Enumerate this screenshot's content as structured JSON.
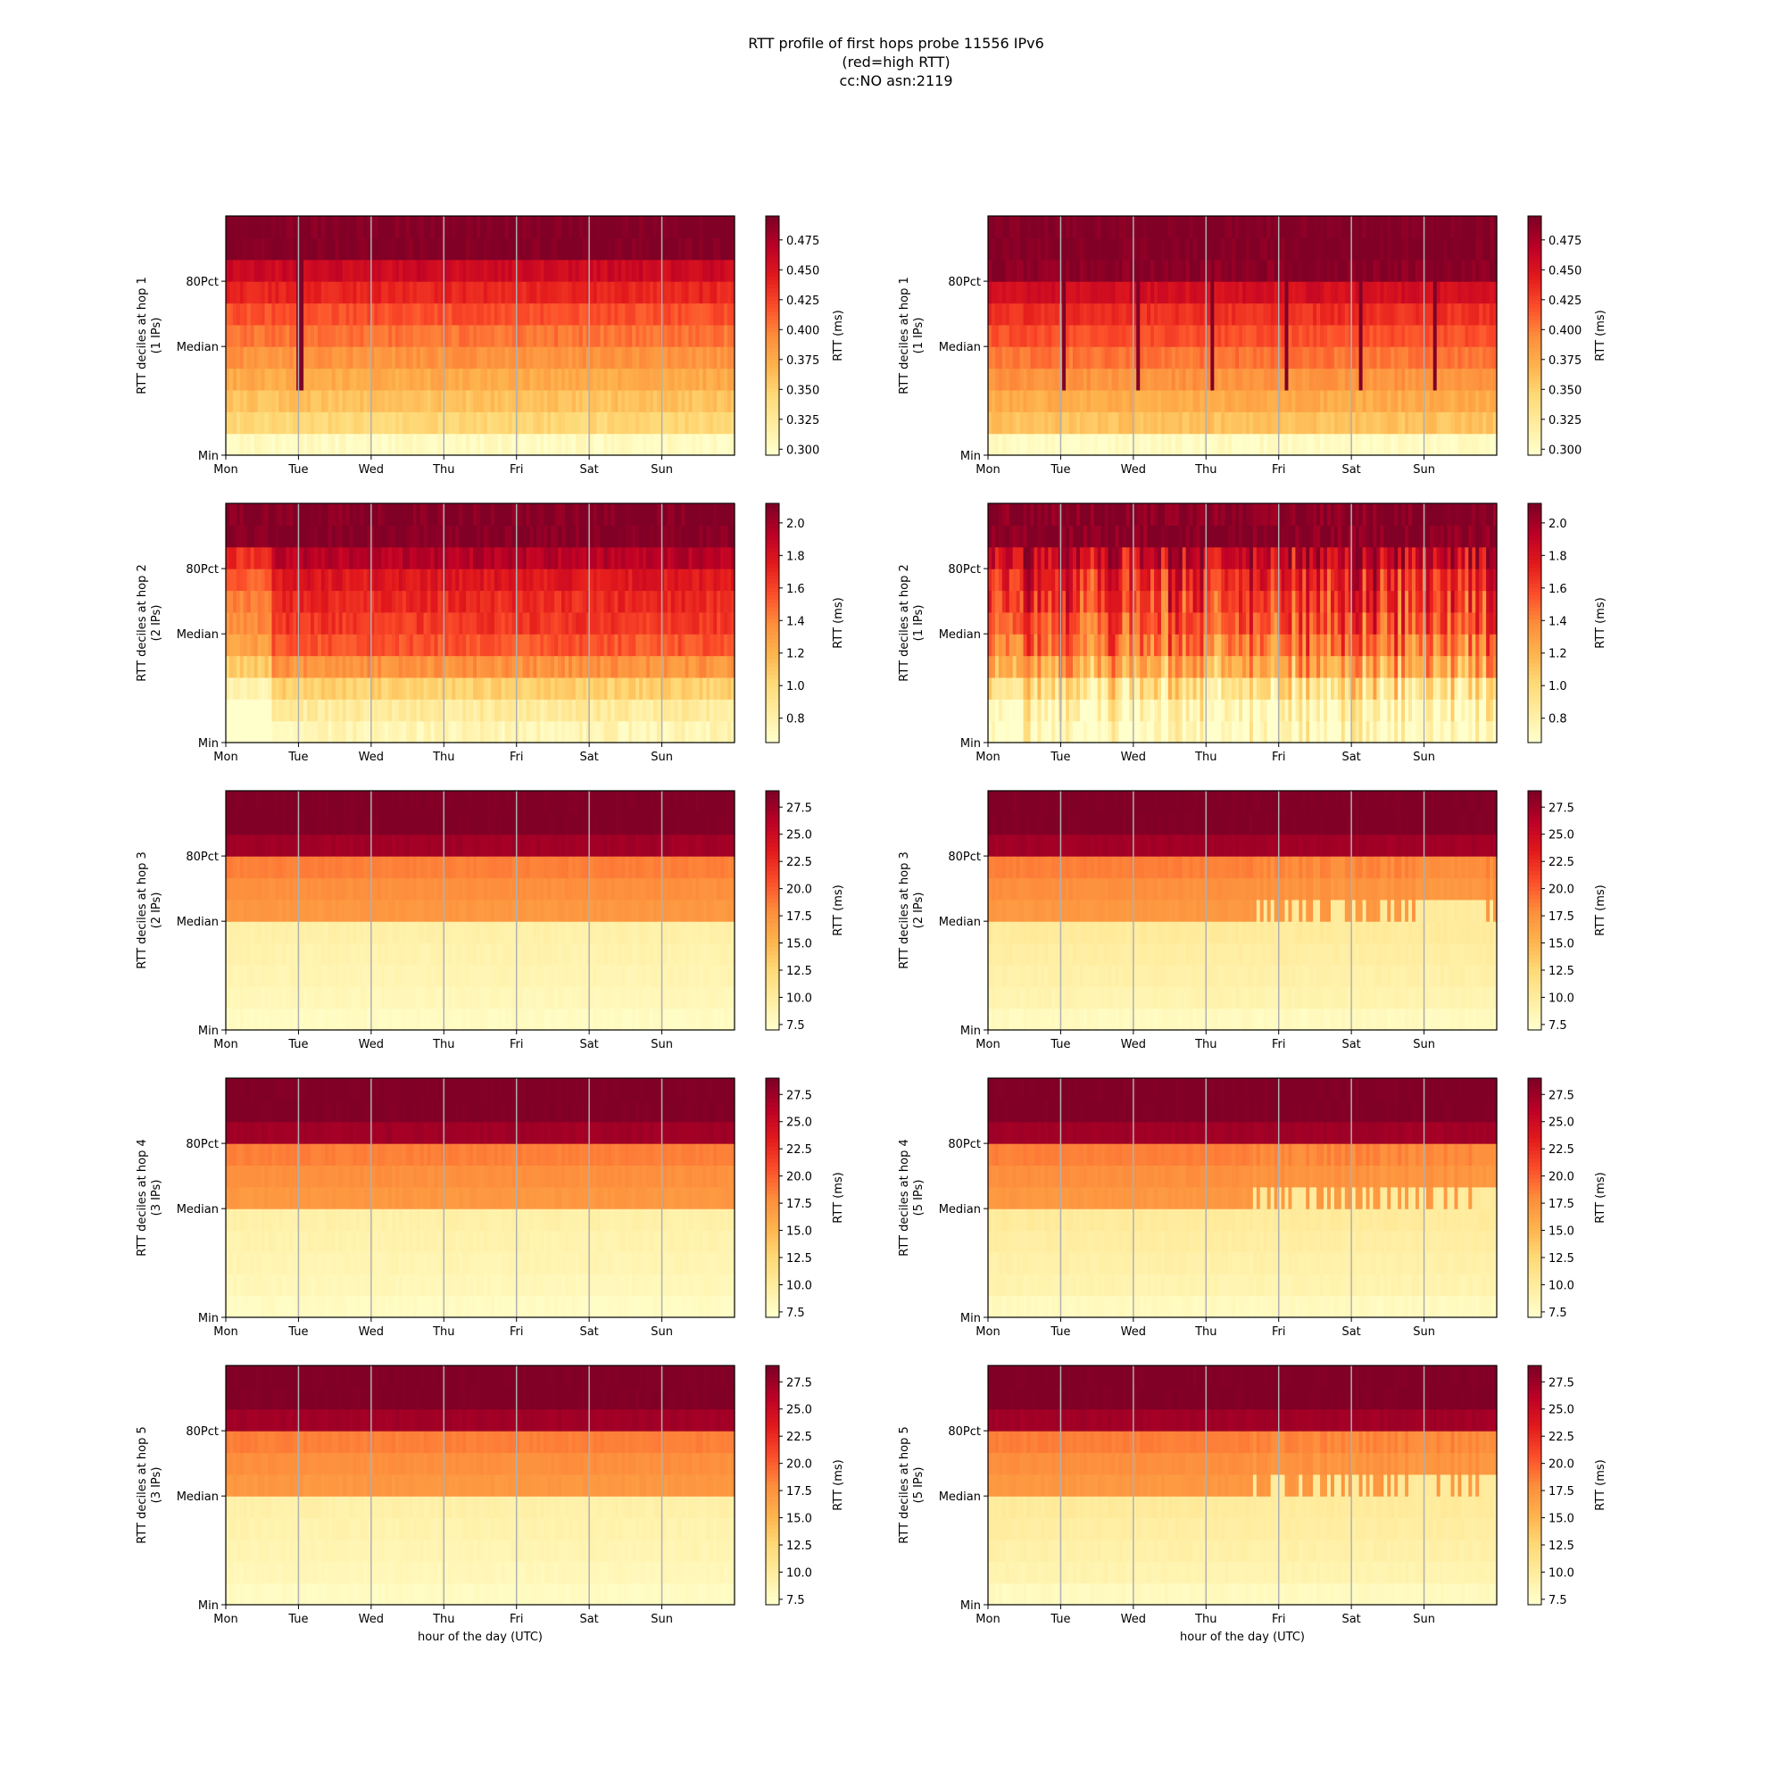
{
  "title_lines": [
    "RTT profile of first hops probe 11556 IPv6",
    "(red=high RTT)",
    "cc:NO asn:2119"
  ],
  "xlabel": "hour of the day (UTC)",
  "colorbar_label": "RTT (ms)",
  "colormap": [
    "#ffffcc",
    "#ffeda0",
    "#fed976",
    "#feb24c",
    "#fd8d3c",
    "#fc4e2a",
    "#e31a1c",
    "#bd0026",
    "#800026"
  ],
  "grid_color": "#b0b0b0",
  "chart_data": [
    {
      "type": "heatmap",
      "col": 0,
      "row": 0,
      "ylabel": "RTT deciles at hop 1",
      "ylabel2": "(1 IPs)",
      "x_ticks": [
        "Mon",
        "Tue",
        "Wed",
        "Thu",
        "Fri",
        "Sat",
        "Sun"
      ],
      "y_ticks": [
        "Min",
        "Median",
        "80Pct"
      ],
      "colorbar_range": [
        0.295,
        0.495
      ],
      "colorbar_ticks": [
        "0.300",
        "0.325",
        "0.350",
        "0.375",
        "0.400",
        "0.425",
        "0.450",
        "0.475"
      ],
      "decile_levels": [
        0.3,
        0.345,
        0.36,
        0.375,
        0.39,
        0.405,
        0.42,
        0.44,
        0.46,
        0.495
      ],
      "noise": 0.008,
      "profile": "flat",
      "spikes": "mon"
    },
    {
      "type": "heatmap",
      "col": 1,
      "row": 0,
      "ylabel": "RTT deciles at hop 1",
      "ylabel2": "(1 IPs)",
      "x_ticks": [
        "Mon",
        "Tue",
        "Wed",
        "Thu",
        "Fri",
        "Sat",
        "Sun"
      ],
      "y_ticks": [
        "Min",
        "Median",
        "80Pct"
      ],
      "colorbar_range": [
        0.295,
        0.495
      ],
      "colorbar_ticks": [
        "0.300",
        "0.325",
        "0.350",
        "0.375",
        "0.400",
        "0.425",
        "0.450",
        "0.475"
      ],
      "decile_levels": [
        0.3,
        0.36,
        0.375,
        0.39,
        0.405,
        0.42,
        0.435,
        0.455,
        0.49,
        0.495
      ],
      "noise": 0.008,
      "profile": "flat",
      "spikes": "days"
    },
    {
      "type": "heatmap",
      "col": 0,
      "row": 1,
      "ylabel": "RTT deciles at hop 2",
      "ylabel2": "(2 IPs)",
      "x_ticks": [
        "Mon",
        "Tue",
        "Wed",
        "Thu",
        "Fri",
        "Sat",
        "Sun"
      ],
      "y_ticks": [
        "Min",
        "Median",
        "80Pct"
      ],
      "colorbar_range": [
        0.65,
        2.12
      ],
      "colorbar_ticks": [
        "0.8",
        "1.0",
        "1.2",
        "1.4",
        "1.6",
        "1.8",
        "2.0"
      ],
      "decile_levels": [
        0.75,
        0.85,
        1.05,
        1.35,
        1.55,
        1.65,
        1.7,
        1.78,
        1.95,
        2.12
      ],
      "noise": 0.08,
      "profile": "monlow",
      "spikes": "none"
    },
    {
      "type": "heatmap",
      "col": 1,
      "row": 1,
      "ylabel": "RTT deciles at hop 2",
      "ylabel2": "(1 IPs)",
      "x_ticks": [
        "Mon",
        "Tue",
        "Wed",
        "Thu",
        "Fri",
        "Sat",
        "Sun"
      ],
      "y_ticks": [
        "Min",
        "Median",
        "80Pct"
      ],
      "colorbar_range": [
        0.65,
        2.12
      ],
      "colorbar_ticks": [
        "0.8",
        "1.0",
        "1.2",
        "1.4",
        "1.6",
        "1.8",
        "2.0"
      ],
      "decile_levels": [
        0.72,
        0.8,
        1.0,
        1.3,
        1.5,
        1.62,
        1.7,
        1.78,
        1.95,
        2.12
      ],
      "noise": 0.12,
      "profile": "variable",
      "spikes": "none"
    },
    {
      "type": "heatmap",
      "col": 0,
      "row": 2,
      "ylabel": "RTT deciles at hop 3",
      "ylabel2": "(2 IPs)",
      "x_ticks": [
        "Mon",
        "Tue",
        "Wed",
        "Thu",
        "Fri",
        "Sat",
        "Sun"
      ],
      "y_ticks": [
        "Min",
        "Median",
        "80Pct"
      ],
      "colorbar_range": [
        7,
        29
      ],
      "colorbar_ticks": [
        "7.5",
        "10.0",
        "12.5",
        "15.0",
        "17.5",
        "20.0",
        "22.5",
        "25.0",
        "27.5"
      ],
      "decile_levels": [
        7.6,
        8.2,
        8.6,
        8.9,
        9.2,
        17.2,
        17.8,
        18.6,
        27.5,
        29
      ],
      "noise": 0.3,
      "profile": "flat",
      "spikes": "none"
    },
    {
      "type": "heatmap",
      "col": 1,
      "row": 2,
      "ylabel": "RTT deciles at hop 3",
      "ylabel2": "(2 IPs)",
      "x_ticks": [
        "Mon",
        "Tue",
        "Wed",
        "Thu",
        "Fri",
        "Sat",
        "Sun"
      ],
      "y_ticks": [
        "Min",
        "Median",
        "80Pct"
      ],
      "colorbar_range": [
        7,
        29
      ],
      "colorbar_ticks": [
        "7.5",
        "10.0",
        "12.5",
        "15.0",
        "17.5",
        "20.0",
        "22.5",
        "25.0",
        "27.5"
      ],
      "decile_levels": [
        7.8,
        8.8,
        9.2,
        9.6,
        10.0,
        17.2,
        17.8,
        18.6,
        27.5,
        29
      ],
      "noise": 0.3,
      "profile": "latedrop",
      "spikes": "none"
    },
    {
      "type": "heatmap",
      "col": 0,
      "row": 3,
      "ylabel": "RTT deciles at hop 4",
      "ylabel2": "(3 IPs)",
      "x_ticks": [
        "Mon",
        "Tue",
        "Wed",
        "Thu",
        "Fri",
        "Sat",
        "Sun"
      ],
      "y_ticks": [
        "Min",
        "Median",
        "80Pct"
      ],
      "colorbar_range": [
        7,
        29
      ],
      "colorbar_ticks": [
        "7.5",
        "10.0",
        "12.5",
        "15.0",
        "17.5",
        "20.0",
        "22.5",
        "25.0",
        "27.5"
      ],
      "decile_levels": [
        7.6,
        8.2,
        8.6,
        8.9,
        9.2,
        17.2,
        17.8,
        18.6,
        27.5,
        29
      ],
      "noise": 0.3,
      "profile": "flat",
      "spikes": "none"
    },
    {
      "type": "heatmap",
      "col": 1,
      "row": 3,
      "ylabel": "RTT deciles at hop 4",
      "ylabel2": "(5 IPs)",
      "x_ticks": [
        "Mon",
        "Tue",
        "Wed",
        "Thu",
        "Fri",
        "Sat",
        "Sun"
      ],
      "y_ticks": [
        "Min",
        "Median",
        "80Pct"
      ],
      "colorbar_range": [
        7,
        29
      ],
      "colorbar_ticks": [
        "7.5",
        "10.0",
        "12.5",
        "15.0",
        "17.5",
        "20.0",
        "22.5",
        "25.0",
        "27.5"
      ],
      "decile_levels": [
        7.8,
        8.8,
        9.2,
        9.6,
        10.0,
        17.2,
        17.8,
        18.6,
        27.5,
        29
      ],
      "noise": 0.3,
      "profile": "latedrop",
      "spikes": "none"
    },
    {
      "type": "heatmap",
      "col": 0,
      "row": 4,
      "ylabel": "RTT deciles at hop 5",
      "ylabel2": "(3 IPs)",
      "x_ticks": [
        "Mon",
        "Tue",
        "Wed",
        "Thu",
        "Fri",
        "Sat",
        "Sun"
      ],
      "y_ticks": [
        "Min",
        "Median",
        "80Pct"
      ],
      "colorbar_range": [
        7,
        29
      ],
      "colorbar_ticks": [
        "7.5",
        "10.0",
        "12.5",
        "15.0",
        "17.5",
        "20.0",
        "22.5",
        "25.0",
        "27.5"
      ],
      "decile_levels": [
        7.6,
        8.2,
        8.6,
        8.9,
        9.2,
        17.2,
        17.8,
        18.6,
        27.5,
        29
      ],
      "noise": 0.3,
      "profile": "flat",
      "spikes": "none"
    },
    {
      "type": "heatmap",
      "col": 1,
      "row": 4,
      "ylabel": "RTT deciles at hop 5",
      "ylabel2": "(5 IPs)",
      "x_ticks": [
        "Mon",
        "Tue",
        "Wed",
        "Thu",
        "Fri",
        "Sat",
        "Sun"
      ],
      "y_ticks": [
        "Min",
        "Median",
        "80Pct"
      ],
      "colorbar_range": [
        7,
        29
      ],
      "colorbar_ticks": [
        "7.5",
        "10.0",
        "12.5",
        "15.0",
        "17.5",
        "20.0",
        "22.5",
        "25.0",
        "27.5"
      ],
      "decile_levels": [
        7.8,
        8.8,
        9.2,
        9.6,
        10.0,
        17.2,
        17.8,
        18.6,
        27.5,
        29
      ],
      "noise": 0.3,
      "profile": "latedrop",
      "spikes": "none"
    }
  ]
}
